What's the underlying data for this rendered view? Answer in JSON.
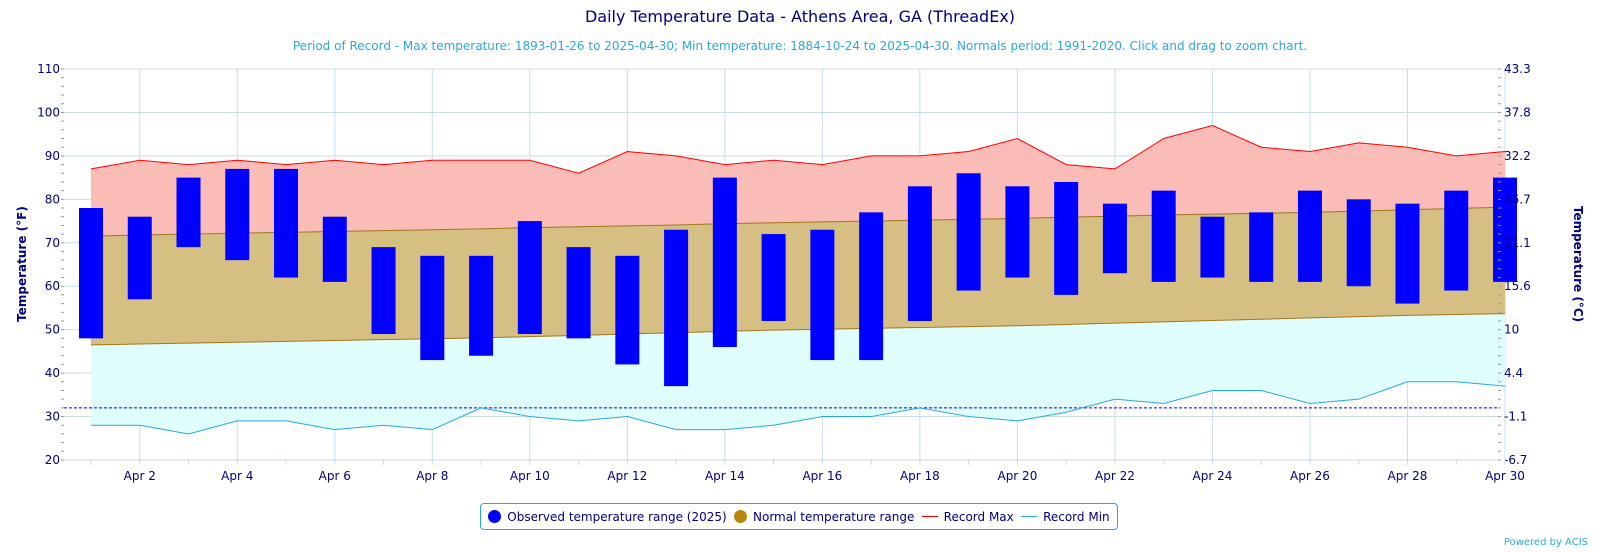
{
  "chart_data": {
    "type": "bar",
    "title": "Daily Temperature Data - Athens Area, GA (ThreadEx)",
    "subtitle": "Period of Record - Max temperature: 1893-01-26 to 2025-04-30; Min temperature: 1884-10-24 to 2025-04-30. Normals period: 1991-2020. Click and drag to zoom chart.",
    "ylabel": "Temperature (°F)",
    "ylabel_right": "Temperature (°C)",
    "ylim": [
      20,
      110
    ],
    "yticks": [
      20,
      30,
      40,
      50,
      60,
      70,
      80,
      90,
      100,
      110
    ],
    "yticks_right": [
      "-6.7",
      "-1.1",
      "4.4",
      "10",
      "15.6",
      "21.1",
      "26.7",
      "32.2",
      "37.8",
      "43.3"
    ],
    "x": [
      1,
      2,
      3,
      4,
      5,
      6,
      7,
      8,
      9,
      10,
      11,
      12,
      13,
      14,
      15,
      16,
      17,
      18,
      19,
      20,
      21,
      22,
      23,
      24,
      25,
      26,
      27,
      28,
      29,
      30
    ],
    "xtick_labels": [
      "Apr 2",
      "Apr 4",
      "Apr 6",
      "Apr 8",
      "Apr 10",
      "Apr 12",
      "Apr 14",
      "Apr 16",
      "Apr 18",
      "Apr 20",
      "Apr 22",
      "Apr 24",
      "Apr 26",
      "Apr 28",
      "Apr 30"
    ],
    "freezing_line": 32,
    "grid": true,
    "legend_position": "bottom-center",
    "series": [
      {
        "name": "Observed temperature range (2025)",
        "color": "#0000ff",
        "low": [
          48,
          57,
          69,
          66,
          62,
          61,
          49,
          43,
          44,
          49,
          48,
          42,
          37,
          46,
          52,
          43,
          43,
          52,
          59,
          62,
          58,
          63,
          61,
          62,
          61,
          61,
          60,
          56,
          59,
          61
        ],
        "high": [
          78,
          76,
          85,
          87,
          87,
          76,
          69,
          67,
          67,
          75,
          69,
          67,
          73,
          85,
          72,
          73,
          77,
          83,
          86,
          83,
          84,
          79,
          82,
          76,
          77,
          82,
          80,
          79,
          82,
          85
        ]
      },
      {
        "name": "Normal temperature range",
        "color": "#b8860b",
        "low": [
          46.5,
          46.7,
          46.9,
          47.1,
          47.3,
          47.5,
          47.7,
          47.9,
          48.1,
          48.4,
          48.7,
          49.0,
          49.3,
          49.6,
          49.9,
          50.1,
          50.3,
          50.5,
          50.7,
          50.9,
          51.2,
          51.5,
          51.8,
          52.1,
          52.4,
          52.7,
          53.0,
          53.3,
          53.5,
          53.7
        ],
        "high": [
          71.5,
          71.8,
          72.0,
          72.2,
          72.4,
          72.6,
          72.8,
          73.0,
          73.2,
          73.5,
          73.7,
          73.9,
          74.1,
          74.4,
          74.6,
          74.8,
          75.0,
          75.2,
          75.4,
          75.6,
          75.9,
          76.1,
          76.4,
          76.6,
          76.8,
          77.0,
          77.3,
          77.6,
          77.9,
          78.2
        ]
      },
      {
        "name": "Record Max",
        "color": "#ff0000",
        "values": [
          87,
          89,
          88,
          89,
          88,
          89,
          88,
          89,
          89,
          89,
          86,
          91,
          90,
          88,
          89,
          88,
          90,
          90,
          91,
          94,
          88,
          87,
          94,
          97,
          92,
          91,
          93,
          92,
          90,
          91
        ]
      },
      {
        "name": "Record Min",
        "color": "#29a8e0",
        "values": [
          28,
          28,
          26,
          29,
          29,
          27,
          28,
          27,
          32,
          30,
          29,
          30,
          27,
          27,
          28,
          30,
          30,
          32,
          30,
          29,
          31,
          34,
          33,
          36,
          36,
          33,
          34,
          38,
          38,
          37
        ]
      }
    ]
  },
  "credits": "Powered by ACIS",
  "colors": {
    "observed": "#0000ff",
    "normal_fill": "#d6bf82",
    "normal_line": "#a0781e",
    "record_max_fill": "#fabcb6",
    "record_max_line": "#ff0000",
    "record_min_fill": "#e0fdfd",
    "record_min_line": "#29a8e0",
    "freezing": "#0000ff",
    "grid": "#c8dde8",
    "text": "#000080"
  }
}
